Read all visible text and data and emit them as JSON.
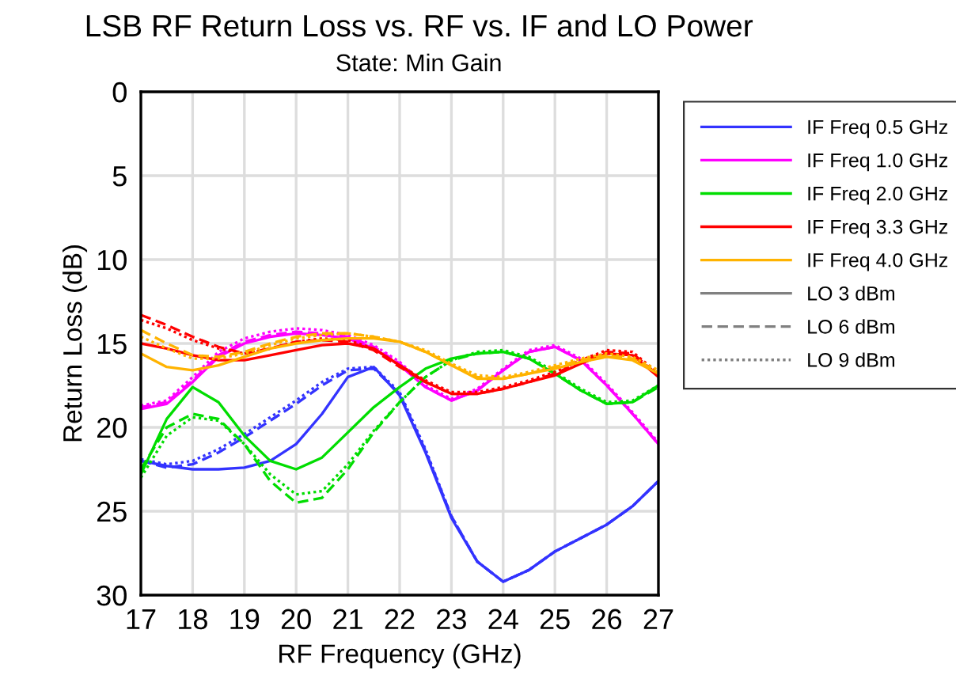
{
  "chart_data": {
    "type": "line",
    "title": "LSB RF Return Loss vs. RF vs. IF and LO Power",
    "subtitle": "State: Min Gain",
    "xlabel": "RF Frequency (GHz)",
    "ylabel": "Return Loss (dB)",
    "xlim": [
      17,
      27
    ],
    "xticks": [
      17,
      18,
      19,
      20,
      21,
      22,
      23,
      24,
      25,
      26,
      27
    ],
    "ylim": [
      30,
      0
    ],
    "yticks": [
      0,
      5,
      10,
      15,
      20,
      25,
      30
    ],
    "grid": true,
    "legend": "right",
    "marker": "none",
    "x": [
      17,
      17.5,
      18,
      18.5,
      19,
      19.5,
      20,
      20.5,
      21,
      21.5,
      22,
      22.5,
      23,
      23.5,
      24,
      24.5,
      25,
      25.5,
      26,
      26.5,
      27
    ],
    "series": [
      {
        "name": "IF Freq 0.5 GHz",
        "color": "#3333ff",
        "line_style": "solid",
        "values": [
          22.0,
          22.3,
          22.5,
          22.5,
          22.4,
          22.0,
          21.0,
          19.2,
          17.0,
          16.4,
          18.1,
          21.5,
          25.4,
          28.0,
          29.2,
          28.5,
          27.4,
          26.6,
          25.8,
          24.7,
          23.2
        ]
      },
      {
        "color": "#3333ff",
        "line_style": "dashed",
        "values": [
          22.0,
          22.4,
          22.2,
          21.5,
          20.6,
          19.6,
          18.6,
          17.5,
          16.6,
          16.5,
          18.0,
          21.4,
          25.3,
          28.0,
          29.2,
          28.5,
          27.4,
          26.6,
          25.8,
          24.7,
          23.2
        ]
      },
      {
        "color": "#3333ff",
        "line_style": "dotted",
        "values": [
          21.9,
          22.2,
          22.0,
          21.3,
          20.4,
          19.4,
          18.4,
          17.3,
          16.5,
          16.4,
          17.9,
          21.3,
          25.3,
          28.0,
          29.2,
          28.5,
          27.4,
          26.6,
          25.8,
          24.7,
          23.2
        ]
      },
      {
        "name": "IF Freq 1.0 GHz",
        "color": "#ff00ff",
        "line_style": "solid",
        "values": [
          18.9,
          18.6,
          17.3,
          15.8,
          15.0,
          14.6,
          14.4,
          14.5,
          14.7,
          15.3,
          16.3,
          17.6,
          18.4,
          17.8,
          16.6,
          15.5,
          15.2,
          16.0,
          17.5,
          19.2,
          21.0
        ]
      },
      {
        "color": "#ff00ff",
        "line_style": "dashed",
        "values": [
          18.8,
          18.5,
          17.2,
          15.7,
          14.9,
          14.5,
          14.3,
          14.4,
          14.6,
          15.2,
          16.2,
          17.6,
          18.4,
          17.8,
          16.6,
          15.5,
          15.2,
          16.0,
          17.5,
          19.2,
          21.0
        ]
      },
      {
        "color": "#ff00ff",
        "line_style": "dotted",
        "values": [
          18.7,
          18.4,
          17.0,
          15.5,
          14.7,
          14.3,
          14.1,
          14.2,
          14.5,
          15.1,
          16.1,
          17.5,
          18.3,
          17.7,
          16.5,
          15.4,
          15.1,
          15.9,
          17.4,
          19.1,
          20.9
        ]
      },
      {
        "name": "IF Freq 2.0 GHz",
        "color": "#00dd00",
        "line_style": "solid",
        "values": [
          22.8,
          19.5,
          17.6,
          18.5,
          20.5,
          22.0,
          22.5,
          21.8,
          20.3,
          18.8,
          17.6,
          16.5,
          15.9,
          15.6,
          15.5,
          15.9,
          16.8,
          17.8,
          18.6,
          18.5,
          17.5
        ]
      },
      {
        "color": "#00dd00",
        "line_style": "dashed",
        "values": [
          22.5,
          20.0,
          19.2,
          19.5,
          21.0,
          23.2,
          24.5,
          24.2,
          22.5,
          20.3,
          18.5,
          17.0,
          16.0,
          15.6,
          15.5,
          15.9,
          16.8,
          17.8,
          18.6,
          18.5,
          17.6
        ]
      },
      {
        "color": "#00dd00",
        "line_style": "dotted",
        "values": [
          23.0,
          20.5,
          19.4,
          19.6,
          21.0,
          22.8,
          24.0,
          23.8,
          22.2,
          20.2,
          18.5,
          17.0,
          16.0,
          15.5,
          15.4,
          15.8,
          16.7,
          17.7,
          18.5,
          18.4,
          17.5
        ]
      },
      {
        "name": "IF Freq 3.3 GHz",
        "color": "#ff0000",
        "line_style": "solid",
        "values": [
          15.0,
          15.3,
          15.7,
          16.0,
          16.0,
          15.7,
          15.4,
          15.1,
          15.0,
          15.3,
          16.3,
          17.3,
          18.0,
          18.0,
          17.7,
          17.3,
          16.9,
          16.2,
          15.6,
          15.7,
          17.0
        ]
      },
      {
        "color": "#ff0000",
        "line_style": "dashed",
        "values": [
          13.3,
          13.9,
          14.6,
          15.2,
          15.6,
          15.3,
          14.9,
          14.8,
          14.9,
          15.4,
          16.4,
          17.3,
          18.0,
          18.0,
          17.7,
          17.3,
          16.8,
          16.1,
          15.5,
          15.6,
          16.9
        ]
      },
      {
        "color": "#ff0000",
        "line_style": "dotted",
        "values": [
          13.6,
          14.1,
          14.8,
          15.3,
          15.6,
          15.3,
          14.9,
          14.7,
          14.8,
          15.3,
          16.3,
          17.2,
          17.9,
          17.9,
          17.6,
          17.2,
          16.7,
          16.0,
          15.4,
          15.5,
          16.8
        ]
      },
      {
        "name": "IF Freq 4.0 GHz",
        "color": "#ffb300",
        "line_style": "solid",
        "values": [
          15.6,
          16.4,
          16.6,
          16.3,
          15.8,
          15.3,
          15.0,
          14.8,
          14.7,
          14.7,
          14.9,
          15.5,
          16.3,
          17.1,
          17.1,
          16.8,
          16.5,
          16.1,
          15.8,
          16.0,
          16.8
        ]
      },
      {
        "color": "#ffb300",
        "line_style": "dashed",
        "values": [
          14.2,
          15.0,
          15.7,
          15.8,
          15.5,
          15.0,
          14.6,
          14.4,
          14.4,
          14.6,
          14.9,
          15.5,
          16.3,
          17.0,
          17.1,
          16.8,
          16.4,
          16.0,
          15.7,
          15.9,
          16.7
        ]
      },
      {
        "color": "#ffb300",
        "line_style": "dotted",
        "values": [
          14.6,
          15.3,
          15.9,
          15.9,
          15.6,
          15.1,
          14.7,
          14.5,
          14.4,
          14.6,
          14.9,
          15.4,
          16.2,
          16.9,
          17.0,
          16.7,
          16.3,
          15.9,
          15.6,
          15.8,
          16.6
        ]
      },
      {
        "name": "LO 3 dBm",
        "color": "#808080",
        "line_style": "solid",
        "values": [
          null,
          null,
          null,
          null,
          null,
          null,
          null,
          null,
          null,
          null,
          null,
          null,
          null,
          null,
          null,
          null,
          null,
          null,
          null,
          null,
          null
        ]
      },
      {
        "name": "LO 6 dBm",
        "color": "#808080",
        "line_style": "dashed",
        "values": [
          null,
          null,
          null,
          null,
          null,
          null,
          null,
          null,
          null,
          null,
          null,
          null,
          null,
          null,
          null,
          null,
          null,
          null,
          null,
          null,
          null
        ]
      },
      {
        "name": "LO 9 dBm",
        "color": "#808080",
        "line_style": "dotted",
        "values": [
          null,
          null,
          null,
          null,
          null,
          null,
          null,
          null,
          null,
          null,
          null,
          null,
          null,
          null,
          null,
          null,
          null,
          null,
          null,
          null,
          null
        ]
      }
    ]
  }
}
